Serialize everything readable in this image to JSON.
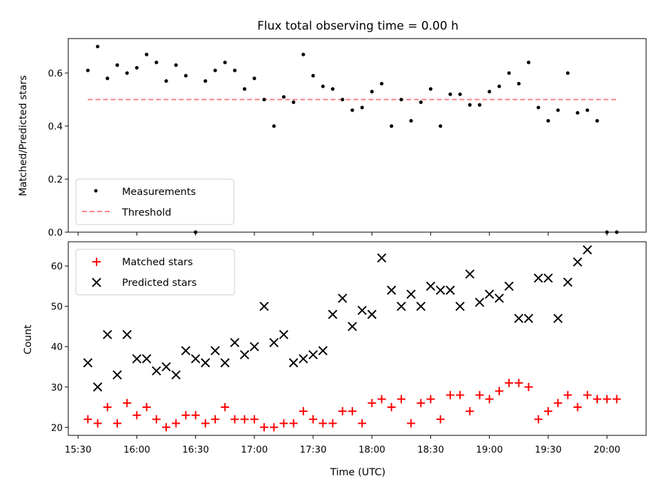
{
  "chart_data": [
    {
      "type": "scatter",
      "title": "Flux total observing time = 0.00 h",
      "ylabel": "Matched/Predicted stars",
      "xlabel": "",
      "ylim": [
        0,
        0.73
      ],
      "yticks": [
        "0.0",
        "0.2",
        "0.4",
        "0.6"
      ],
      "grid": false,
      "legend_position": "lower-left",
      "series": [
        {
          "name": "Measurements",
          "color": "#000000",
          "marker": "dot",
          "x": [
            "15:35",
            "15:40",
            "15:45",
            "15:50",
            "15:55",
            "16:00",
            "16:05",
            "16:10",
            "16:15",
            "16:20",
            "16:25",
            "16:30",
            "16:35",
            "16:40",
            "16:45",
            "16:50",
            "16:55",
            "17:00",
            "17:05",
            "17:10",
            "17:15",
            "17:20",
            "17:25",
            "17:30",
            "17:35",
            "17:40",
            "17:45",
            "17:50",
            "17:55",
            "18:00",
            "18:05",
            "18:10",
            "18:15",
            "18:20",
            "18:25",
            "18:30",
            "18:35",
            "18:40",
            "18:45",
            "18:50",
            "18:55",
            "19:00",
            "19:05",
            "19:10",
            "19:15",
            "19:20",
            "19:25",
            "19:30",
            "19:35",
            "19:40",
            "19:45",
            "19:50",
            "19:55",
            "20:00",
            "20:05"
          ],
          "y": [
            0.61,
            0.7,
            0.58,
            0.63,
            0.6,
            0.62,
            0.67,
            0.64,
            0.57,
            0.63,
            0.59,
            0.0,
            0.57,
            0.61,
            0.64,
            0.61,
            0.54,
            0.58,
            0.5,
            0.4,
            0.51,
            0.49,
            0.67,
            0.59,
            0.55,
            0.54,
            0.5,
            0.46,
            0.47,
            0.53,
            0.56,
            0.4,
            0.5,
            0.42,
            0.49,
            0.54,
            0.4,
            0.52,
            0.52,
            0.48,
            0.48,
            0.53,
            0.55,
            0.6,
            0.56,
            0.64,
            0.47,
            0.42,
            0.46,
            0.6,
            0.45,
            0.46,
            0.42,
            0.0,
            0.0
          ]
        },
        {
          "name": "Threshold",
          "color": "#ff8080",
          "style": "dashed",
          "x": [
            "15:35",
            "20:05"
          ],
          "y": [
            0.5,
            0.5
          ]
        }
      ]
    },
    {
      "type": "scatter",
      "title": "",
      "xlabel": "Time (UTC)",
      "ylabel": "Count",
      "ylim": [
        18,
        66
      ],
      "yticks": [
        "20",
        "30",
        "40",
        "50",
        "60"
      ],
      "xticks": [
        "15:30",
        "16:00",
        "16:30",
        "17:00",
        "17:30",
        "18:00",
        "18:30",
        "19:00",
        "19:30",
        "20:00"
      ],
      "xlim": [
        "15:25",
        "20:20"
      ],
      "grid": false,
      "legend_position": "upper-left",
      "series": [
        {
          "name": "Matched stars",
          "color": "#ff0000",
          "marker": "plus",
          "x": [
            "15:35",
            "15:40",
            "15:45",
            "15:50",
            "15:55",
            "16:00",
            "16:05",
            "16:10",
            "16:15",
            "16:20",
            "16:25",
            "16:30",
            "16:35",
            "16:40",
            "16:45",
            "16:50",
            "16:55",
            "17:00",
            "17:05",
            "17:10",
            "17:15",
            "17:20",
            "17:25",
            "17:30",
            "17:35",
            "17:40",
            "17:45",
            "17:50",
            "17:55",
            "18:00",
            "18:05",
            "18:10",
            "18:15",
            "18:20",
            "18:25",
            "18:30",
            "18:35",
            "18:40",
            "18:45",
            "18:50",
            "18:55",
            "19:00",
            "19:05",
            "19:10",
            "19:15",
            "19:20",
            "19:25",
            "19:30",
            "19:35",
            "19:40",
            "19:45",
            "19:50",
            "19:55",
            "20:00",
            "20:05"
          ],
          "y": [
            22,
            21,
            25,
            21,
            26,
            23,
            25,
            22,
            20,
            21,
            23,
            23,
            21,
            22,
            25,
            22,
            22,
            22,
            20,
            20,
            21,
            21,
            24,
            22,
            21,
            21,
            24,
            24,
            21,
            26,
            27,
            25,
            27,
            21,
            26,
            27,
            22,
            28,
            28,
            24,
            28,
            27,
            29,
            31,
            31,
            30,
            22,
            24,
            26,
            28,
            25,
            28,
            27,
            27,
            27
          ]
        },
        {
          "name": "Predicted stars",
          "color": "#000000",
          "marker": "x",
          "x": [
            "15:35",
            "15:40",
            "15:45",
            "15:50",
            "15:55",
            "16:00",
            "16:05",
            "16:10",
            "16:15",
            "16:20",
            "16:25",
            "16:30",
            "16:35",
            "16:40",
            "16:45",
            "16:50",
            "16:55",
            "17:00",
            "17:05",
            "17:10",
            "17:15",
            "17:20",
            "17:25",
            "17:30",
            "17:35",
            "17:40",
            "17:45",
            "17:50",
            "17:55",
            "18:00",
            "18:05",
            "18:10",
            "18:15",
            "18:20",
            "18:25",
            "18:30",
            "18:35",
            "18:40",
            "18:45",
            "18:50",
            "18:55",
            "19:00",
            "19:05",
            "19:10",
            "19:15",
            "19:20",
            "19:25",
            "19:30",
            "19:35",
            "19:40",
            "19:45",
            "19:50",
            "19:55"
          ],
          "y": [
            36,
            30,
            43,
            33,
            43,
            37,
            37,
            34,
            35,
            33,
            39,
            37,
            36,
            39,
            36,
            41,
            38,
            40,
            50,
            41,
            43,
            36,
            37,
            38,
            39,
            48,
            52,
            45,
            49,
            48,
            62,
            54,
            50,
            53,
            50,
            55,
            54,
            54,
            50,
            58,
            51,
            53,
            52,
            55,
            47,
            47,
            57,
            57,
            47,
            56,
            61,
            64,
            null
          ]
        }
      ]
    }
  ]
}
